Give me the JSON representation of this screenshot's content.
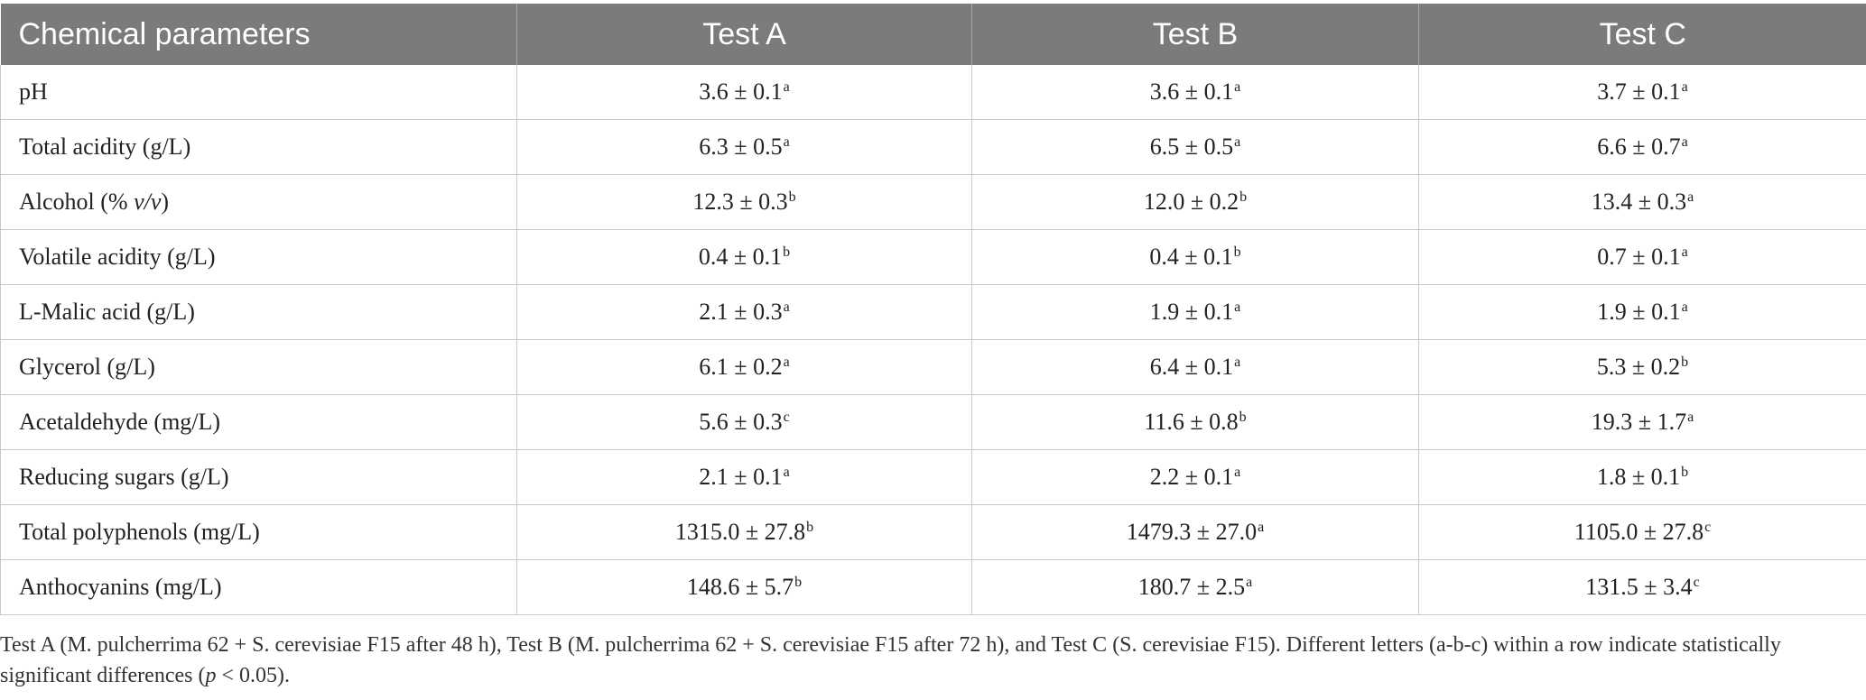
{
  "table": {
    "headers": [
      "Chemical parameters",
      "Test A",
      "Test B",
      "Test C"
    ],
    "rows": [
      {
        "parameter": "pH",
        "values": [
          {
            "v": "3.6 ± 0.1",
            "s": "a"
          },
          {
            "v": "3.6 ± 0.1",
            "s": "a"
          },
          {
            "v": "3.7 ± 0.1",
            "s": "a"
          }
        ]
      },
      {
        "parameter": "Total acidity (g/L)",
        "values": [
          {
            "v": "6.3 ± 0.5",
            "s": "a"
          },
          {
            "v": "6.5 ± 0.5",
            "s": "a"
          },
          {
            "v": "6.6 ± 0.7",
            "s": "a"
          }
        ]
      },
      {
        "parameter": "Alcohol (% ",
        "parameter_italic": "v/v",
        "parameter_tail": ")",
        "values": [
          {
            "v": "12.3 ± 0.3",
            "s": "b"
          },
          {
            "v": "12.0 ± 0.2",
            "s": "b"
          },
          {
            "v": "13.4 ± 0.3",
            "s": "a"
          }
        ]
      },
      {
        "parameter": "Volatile acidity (g/L)",
        "values": [
          {
            "v": "0.4 ± 0.1",
            "s": "b"
          },
          {
            "v": "0.4 ± 0.1",
            "s": "b"
          },
          {
            "v": "0.7 ± 0.1",
            "s": "a"
          }
        ]
      },
      {
        "parameter": "L-Malic acid (g/L)",
        "values": [
          {
            "v": "2.1 ± 0.3",
            "s": "a"
          },
          {
            "v": "1.9 ± 0.1",
            "s": "a"
          },
          {
            "v": "1.9 ± 0.1",
            "s": "a"
          }
        ]
      },
      {
        "parameter": "Glycerol (g/L)",
        "values": [
          {
            "v": "6.1 ± 0.2",
            "s": "a"
          },
          {
            "v": "6.4 ± 0.1",
            "s": "a"
          },
          {
            "v": "5.3 ± 0.2",
            "s": "b"
          }
        ]
      },
      {
        "parameter": "Acetaldehyde (mg/L)",
        "values": [
          {
            "v": "5.6 ± 0.3",
            "s": "c"
          },
          {
            "v": "11.6 ± 0.8",
            "s": "b"
          },
          {
            "v": "19.3 ± 1.7",
            "s": "a"
          }
        ]
      },
      {
        "parameter": "Reducing sugars (g/L)",
        "values": [
          {
            "v": "2.1 ± 0.1",
            "s": "a"
          },
          {
            "v": "2.2 ± 0.1",
            "s": "a"
          },
          {
            "v": "1.8 ± 0.1",
            "s": "b"
          }
        ]
      },
      {
        "parameter": "Total polyphenols (mg/L)",
        "values": [
          {
            "v": "1315.0 ± 27.8",
            "s": "b"
          },
          {
            "v": "1479.3 ± 27.0",
            "s": "a"
          },
          {
            "v": "1105.0 ± 27.8",
            "s": "c"
          }
        ]
      },
      {
        "parameter": "Anthocyanins (mg/L)",
        "values": [
          {
            "v": "148.6 ± 5.7",
            "s": "b"
          },
          {
            "v": "180.7 ± 2.5",
            "s": "a"
          },
          {
            "v": "131.5 ± 3.4",
            "s": "c"
          }
        ]
      }
    ]
  },
  "footnote": {
    "text": "Test A (M. pulcherrima 62 + S. cerevisiae F15 after 48 h), Test B (M. pulcherrima 62 + S. cerevisiae F15 after 72 h), and Test C (S. cerevisiae F15). Different letters (a-b-c) within a row indicate statistically significant differences (",
    "italic": "p",
    "tail": " < 0.05)."
  },
  "colors": {
    "header_bg": "#7b7b7b",
    "header_text": "#ffffff",
    "grid": "#c8c8c8"
  }
}
